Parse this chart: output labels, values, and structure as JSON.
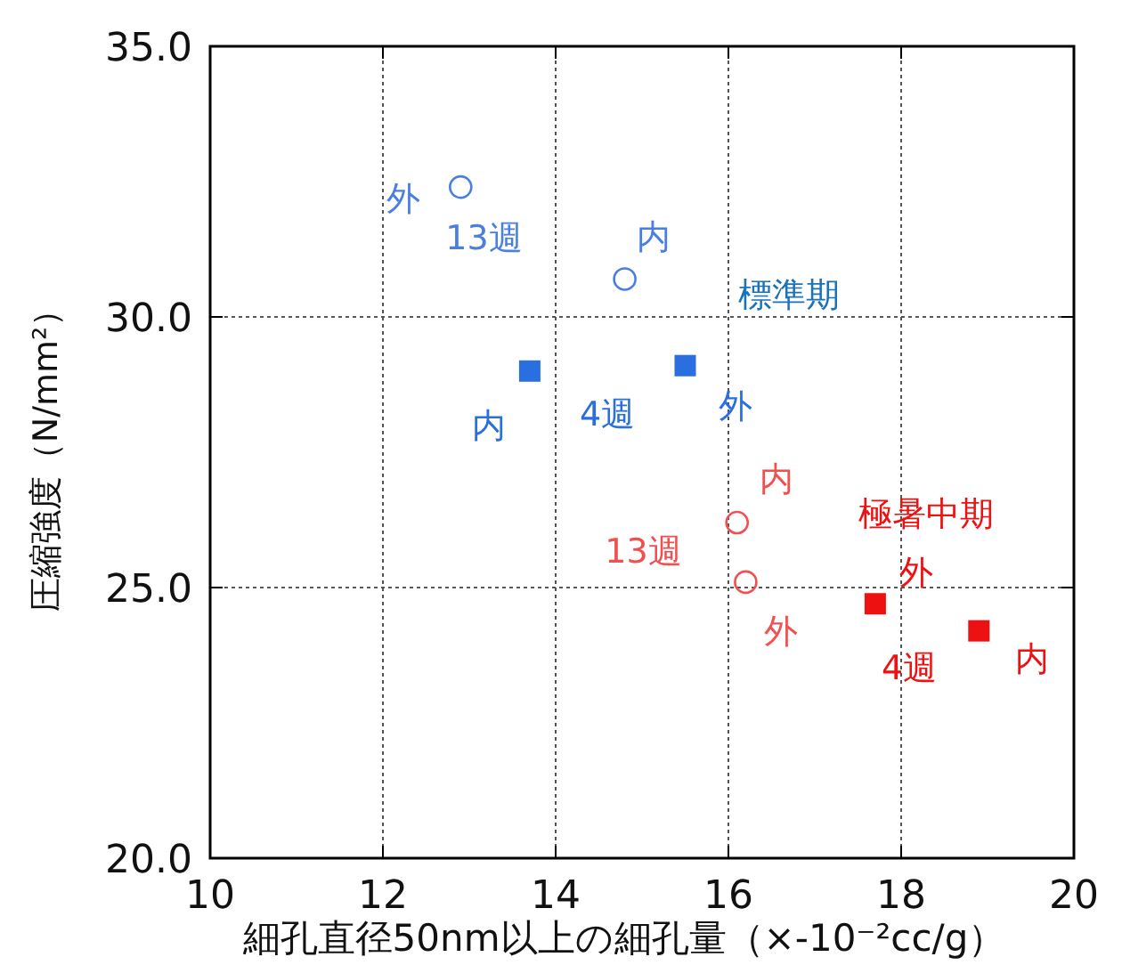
{
  "chart_data": {
    "type": "scatter",
    "xlabel": "細孔直径50nm以上の細孔量（×-10⁻²cc/g）",
    "ylabel": "圧縮強度（N/mm²）",
    "xlim": [
      10,
      20
    ],
    "xticks": [
      10,
      12,
      14,
      16,
      18,
      20
    ],
    "ylim": [
      20,
      35
    ],
    "yticks": [
      {
        "value": 20,
        "label": "20.0"
      },
      {
        "value": 25,
        "label": "25.0"
      },
      {
        "value": 30,
        "label": "30.0"
      },
      {
        "value": 35,
        "label": "35.0"
      }
    ],
    "grid": true,
    "series": [
      {
        "name": "13週",
        "color": "#4a7fe0",
        "marker": "circle",
        "x": [
          12.9,
          14.8
        ],
        "values": [
          32.4,
          30.7
        ],
        "value_labels": [
          "外",
          "内"
        ]
      },
      {
        "name": "4週",
        "color": "#2a6fe0",
        "marker": "square",
        "x": [
          13.7,
          15.5
        ],
        "values": [
          29.0,
          29.1
        ],
        "value_labels": [
          "内",
          "外"
        ]
      },
      {
        "name": "13週",
        "color": "#f05050",
        "marker": "circle",
        "x": [
          16.1,
          16.2
        ],
        "values": [
          26.2,
          25.1
        ],
        "value_labels": [
          "内",
          "外"
        ]
      },
      {
        "name": "4週",
        "color": "#ee1111",
        "marker": "square",
        "x": [
          17.7,
          18.9
        ],
        "values": [
          24.7,
          24.2
        ],
        "value_labels": [
          "外",
          "内"
        ]
      }
    ],
    "annotations": [
      "標準期",
      "極暑中期"
    ]
  }
}
